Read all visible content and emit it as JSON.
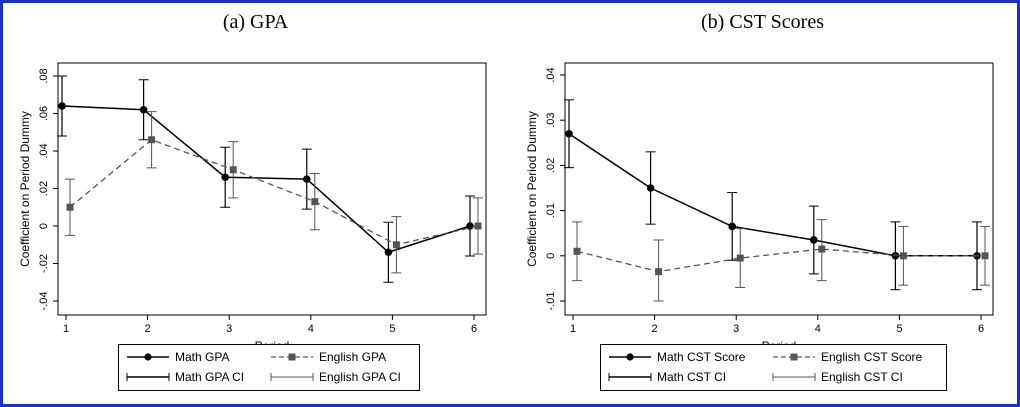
{
  "chart_data": [
    {
      "type": "line",
      "title": "(a) GPA",
      "xlabel": "Period",
      "ylabel": "Coefficient on Period Dummy",
      "x": [
        1,
        2,
        3,
        4,
        5,
        6
      ],
      "xticks": [
        "1",
        "2",
        "3",
        "4",
        "5",
        "6"
      ],
      "yticks": [
        "-.04",
        "-.02",
        "0",
        ".02",
        ".04",
        ".06",
        ".08"
      ],
      "ylim": [
        -0.04,
        0.08
      ],
      "series": [
        {
          "name": "Math GPA",
          "ci_name": "Math GPA CI",
          "marker": "circle",
          "dash": "solid",
          "values": [
            0.064,
            0.062,
            0.026,
            0.025,
            -0.014,
            0.0
          ],
          "ci_low": [
            0.048,
            0.046,
            0.01,
            0.009,
            -0.03,
            -0.016
          ],
          "ci_high": [
            0.08,
            0.078,
            0.042,
            0.041,
            0.002,
            0.016
          ]
        },
        {
          "name": "English GPA",
          "ci_name": "English GPA CI",
          "marker": "square",
          "dash": "dashed",
          "values": [
            0.01,
            0.046,
            0.03,
            0.013,
            -0.01,
            0.0
          ],
          "ci_low": [
            -0.005,
            0.031,
            0.015,
            -0.002,
            -0.025,
            -0.015
          ],
          "ci_high": [
            0.025,
            0.061,
            0.045,
            0.028,
            0.005,
            0.015
          ]
        }
      ]
    },
    {
      "type": "line",
      "title": "(b) CST Scores",
      "xlabel": "Period",
      "ylabel": "Coefficient on Period Dummy",
      "x": [
        1,
        2,
        3,
        4,
        5,
        6
      ],
      "xticks": [
        "1",
        "2",
        "3",
        "4",
        "5",
        "6"
      ],
      "yticks": [
        "-.01",
        "0",
        ".01",
        ".02",
        ".03",
        ".04"
      ],
      "ylim": [
        -0.01,
        0.04
      ],
      "series": [
        {
          "name": "Math CST Score",
          "ci_name": "Math CST CI",
          "marker": "circle",
          "dash": "solid",
          "values": [
            0.027,
            0.015,
            0.0065,
            0.0035,
            0.0,
            0.0
          ],
          "ci_low": [
            0.0195,
            0.007,
            -0.001,
            -0.004,
            -0.0075,
            -0.0075
          ],
          "ci_high": [
            0.0345,
            0.023,
            0.014,
            0.011,
            0.0075,
            0.0075
          ]
        },
        {
          "name": "English CST Score",
          "ci_name": "English CST CI",
          "marker": "square",
          "dash": "dashed",
          "values": [
            0.001,
            -0.0035,
            -0.0005,
            0.0015,
            0.0,
            0.0
          ],
          "ci_low": [
            -0.0055,
            -0.01,
            -0.007,
            -0.0055,
            -0.0065,
            -0.0065
          ],
          "ci_high": [
            0.0075,
            0.0035,
            0.006,
            0.008,
            0.0065,
            0.0065
          ]
        }
      ]
    }
  ],
  "colors": {
    "frame": "#1a32c8",
    "math": "#000000",
    "english": "#555555"
  }
}
